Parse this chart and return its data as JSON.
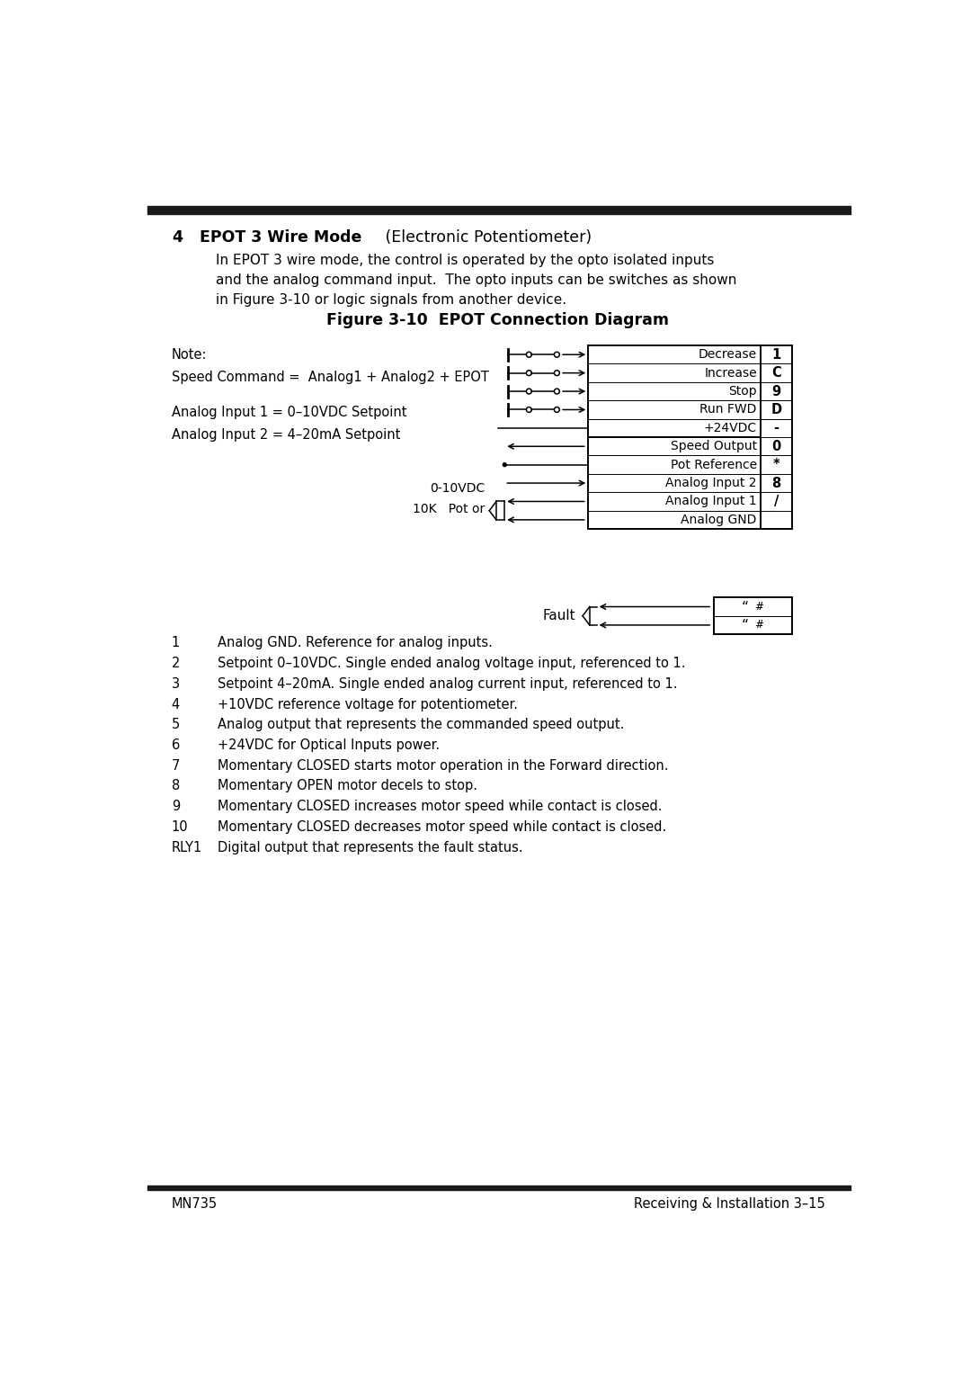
{
  "title_number": "4",
  "title_bold": "EPOT 3 Wire Mode",
  "title_normal": " (Electronic Potentiometer)",
  "body_text_line1": "In EPOT 3 wire mode, the control is operated by the opto isolated inputs",
  "body_text_line2": "and the analog command input.  The opto inputs can be switches as shown",
  "body_text_line3": "in Figure 3-10 or logic signals from another device.",
  "figure_title": "Figure 3-10  EPOT Connection Diagram",
  "note_line1": "Note:",
  "note_line2": "Speed Command =  Analog1 + Analog2 + EPOT",
  "analog_line1": "Analog Input 1 = 0–10VDC Setpoint",
  "analog_line2": "Analog Input 2 = 4–20mA Setpoint",
  "upper_labels": [
    "Decrease",
    "Increase",
    "Stop",
    "Run FWD",
    "+24VDC"
  ],
  "lower_labels": [
    "Speed Output",
    "Pot Reference",
    "Analog Input 2",
    "Analog Input 1",
    "Analog GND"
  ],
  "right_labels": [
    "1",
    "C",
    "9",
    "D",
    "-",
    "0",
    "*",
    "8",
    "/",
    ""
  ],
  "pot_label_line1": "10K   Pot or",
  "pot_label_line2": "0-10VDC",
  "fault_label": "Fault",
  "fault_box_labels": [
    "“ #",
    "“ #"
  ],
  "numbered_notes": [
    [
      "1",
      "Analog GND. Reference for analog inputs."
    ],
    [
      "2",
      "Setpoint 0–10VDC. Single ended analog voltage input, referenced to 1."
    ],
    [
      "3",
      "Setpoint 4–20mA. Single ended analog current input, referenced to 1."
    ],
    [
      "4",
      "+10VDC reference voltage for potentiometer."
    ],
    [
      "5",
      "Analog output that represents the commanded speed output."
    ],
    [
      "6",
      "+24VDC for Optical Inputs power."
    ],
    [
      "7",
      "Momentary CLOSED starts motor operation in the Forward direction."
    ],
    [
      "8",
      "Momentary OPEN motor decels to stop."
    ],
    [
      "9",
      "Momentary CLOSED increases motor speed while contact is closed."
    ],
    [
      "10",
      "Momentary CLOSED decreases motor speed while contact is closed."
    ],
    [
      "RLY1",
      "Digital output that represents the fault status."
    ]
  ],
  "footer_left": "MN735",
  "footer_right": "Receiving & Installation 3–15",
  "bg_color": "#ffffff",
  "text_color": "#000000",
  "bar_color": "#1a1a1a"
}
